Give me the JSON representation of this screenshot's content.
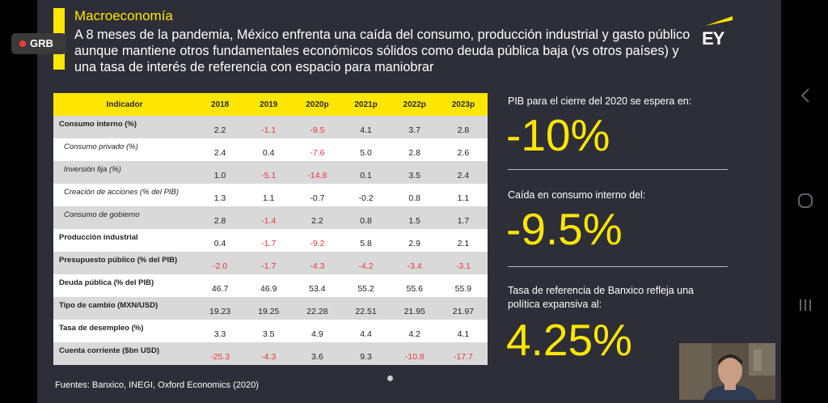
{
  "recording": {
    "label": "GRB"
  },
  "slide": {
    "heading": "Macroeconomía",
    "subtitle": "A 8 meses de la pandemia, México enfrenta una caída del consumo, producción industrial y gasto público aunque mantiene otros fundamentales económicos sólidos como deuda pública baja (vs otros países) y una tasa de interés de referencia con espacio para maniobrar",
    "logo_text": "EY",
    "colors": {
      "accent": "#ffe600",
      "background": "#2e2e38",
      "negative": "#e8363b"
    },
    "table": {
      "headers": [
        "Indicador",
        "2018",
        "2019",
        "2020p",
        "2021p",
        "2022p",
        "2023p"
      ],
      "rows": [
        {
          "label": "Consumo interno (%)",
          "style": "bold",
          "values": [
            "2.2",
            "-1.1",
            "-9.5",
            "4.1",
            "3.7",
            "2.8"
          ]
        },
        {
          "label": "Consumo privado (%)",
          "style": "sub",
          "values": [
            "2.4",
            "0.4",
            "-7.6",
            "5.0",
            "2.8",
            "2.6"
          ]
        },
        {
          "label": "Inversión fija (%)",
          "style": "sub",
          "values": [
            "1.0",
            "-5.1",
            "-14.8",
            "0.1",
            "3.5",
            "2.4"
          ]
        },
        {
          "label": "Creación de acciones (% del PIB)",
          "style": "sub",
          "values": [
            "1.3",
            "1.1",
            "-0.7",
            "-0.2",
            "0.8",
            "1.1"
          ]
        },
        {
          "label": "Consumo de gobierno",
          "style": "sub",
          "values": [
            "2.8",
            "-1.4",
            "2.2",
            "0.8",
            "1.5",
            "1.7"
          ]
        },
        {
          "label": "Producción industrial",
          "style": "bold",
          "values": [
            "0.4",
            "-1.7",
            "-9.2",
            "5.8",
            "2.9",
            "2.1"
          ]
        },
        {
          "label": "Presupuesto público (% del PIB)",
          "style": "bold",
          "values": [
            "-2.0",
            "-1.7",
            "-4.3",
            "-4.2",
            "-3.4",
            "-3.1"
          ]
        },
        {
          "label": "Deuda pública (% del PIB)",
          "style": "bold",
          "values": [
            "46.7",
            "46.9",
            "53.4",
            "55.2",
            "55.6",
            "55.9"
          ]
        },
        {
          "label": "Tipo de cambio (MXN/USD)",
          "style": "bold",
          "values": [
            "19.23",
            "19.25",
            "22.28",
            "22.51",
            "21.95",
            "21.97"
          ]
        },
        {
          "label": "Tasa de desempleo (%)",
          "style": "bold",
          "values": [
            "3.3",
            "3.5",
            "4.9",
            "4.4",
            "4.2",
            "4.1"
          ]
        },
        {
          "label": "Cuenta corriente ($bn USD)",
          "style": "bold",
          "values": [
            "-25.3",
            "-4.3",
            "3.6",
            "9.3",
            "-10.8",
            "-17.7"
          ]
        }
      ]
    },
    "sources": "Fuentes: Banxico, INEGI, Oxford Economics (2020)",
    "kpis": [
      {
        "label": "PIB para el cierre del 2020 se espera en:",
        "value": "-10%"
      },
      {
        "label": "Caída en consumo interno del:",
        "value": "-9.5%"
      },
      {
        "label": "Tasa de referencia de Banxico refleja una política expansiva al:",
        "value": "4.25%"
      }
    ]
  },
  "nav": {
    "back_icon": "chevron-left-icon",
    "home_icon": "home-circle-icon",
    "recents_icon": "recents-bars-icon"
  }
}
